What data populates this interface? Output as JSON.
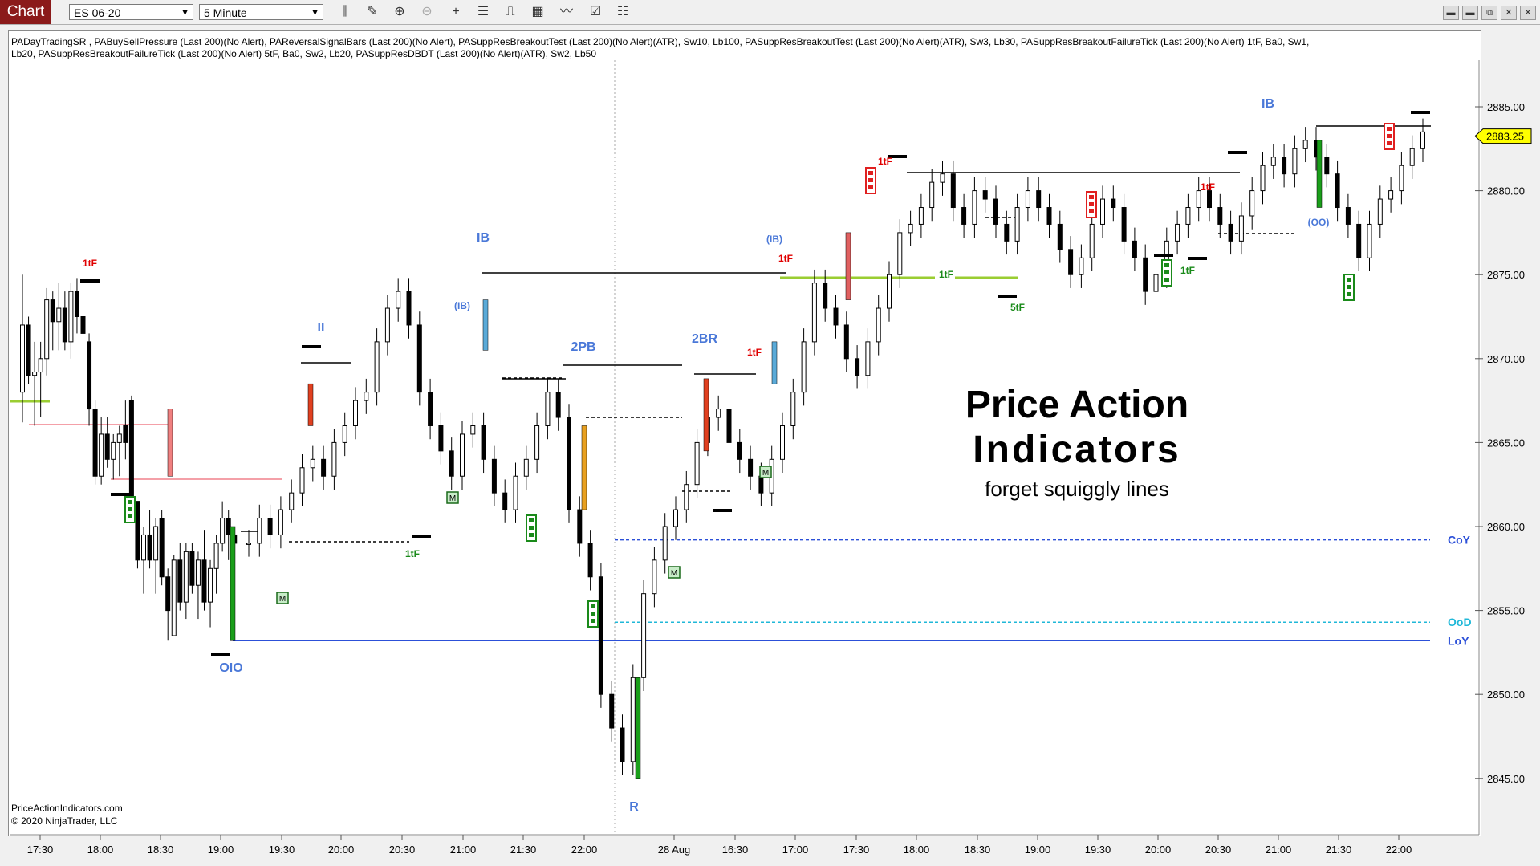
{
  "toolbar": {
    "chart_tab": "Chart",
    "instrument": "ES 06-20",
    "interval": "5 Minute",
    "tool_icons": [
      "bar-type-icon",
      "drawing-tool-icon",
      "zoom-in-icon",
      "zoom-out-icon",
      "crosshair-icon",
      "properties-icon",
      "indicators-icon",
      "strategies-icon",
      "chart-style-icon",
      "data-box-icon"
    ],
    "window_icons": [
      "minimize-icon",
      "restore-icon",
      "maximize-icon",
      "close-icon"
    ]
  },
  "indicator_line1": "PADayTradingSR , PABuySellPressure (Last 200)(No Alert), PAReversalSignalBars (Last 200)(No Alert), PASuppResBreakoutTest (Last 200)(No Alert)(ATR),  Sw10,  Lb100, PASuppResBreakoutTest (Last 200)(No Alert)(ATR),  Sw3,  Lb30, PASuppResBreakoutFailureTick (Last 200)(No Alert) 1tF,  Ba0,  Sw1,",
  "indicator_line2": "Lb20, PASuppResBreakoutFailureTick (Last 200)(No Alert) 5tF,  Ba0,  Sw2,  Lb20, PASuppResDBDT (Last 200)(No Alert)(ATR),  Sw2,  Lb50",
  "watermark": {
    "line1": "Price Action",
    "line2": "Indicators",
    "line3": "forget squiggly lines"
  },
  "footer": {
    "site": "PriceActionIndicators.com",
    "copyright": "© 2020 NinjaTrader, LLC"
  },
  "chart_data": {
    "type": "candlestick",
    "ylim": [
      2842,
      2890
    ],
    "y_ticks": [
      2845,
      2850,
      2855,
      2860,
      2865,
      2870,
      2875,
      2880,
      2885
    ],
    "y_tick_labels": [
      "2845.00",
      "2850.00",
      "2855.00",
      "2860.00",
      "2865.00",
      "2870.00",
      "2875.00",
      "2880.00",
      "2885.00"
    ],
    "x_tick_labels": [
      "17:30",
      "18:00",
      "18:30",
      "19:00",
      "19:30",
      "20:00",
      "20:30",
      "21:00",
      "21:30",
      "22:00",
      "28 Aug",
      "16:30",
      "17:00",
      "17:30",
      "18:00",
      "18:30",
      "19:00",
      "19:30",
      "20:00",
      "20:30",
      "21:00",
      "21:30",
      "22:00"
    ],
    "current_price": 2883.25,
    "current_price_label": "2883.25",
    "colors": {
      "up_candle": "#ffffff",
      "down_candle": "#000000",
      "buy_pressure": "#1a9e1a",
      "sell_pressure": "#e02020",
      "label_blue": "#4a78d8",
      "label_red": "#e00000",
      "label_green": "#1a8a1a",
      "price_marker": "#ffff00"
    },
    "level_lines": [
      {
        "label": "CoY",
        "value": 2859.2,
        "style": "dashed",
        "color": "#2c50d8"
      },
      {
        "label": "OoD",
        "value": 2854.3,
        "style": "dashed",
        "color": "#20b8d8"
      },
      {
        "label": "LoY",
        "value": 2853.2,
        "style": "solid",
        "color": "#2c50d8"
      }
    ],
    "annotations": [
      {
        "text": "1tF",
        "x_index": 6,
        "y": 2876.5,
        "color": "red"
      },
      {
        "text": "II",
        "x_index": 25,
        "y": 2871.5,
        "color": "blue"
      },
      {
        "text": "IB",
        "x_index": 39,
        "y": 2877.8,
        "color": "blue"
      },
      {
        "text": "(IB)",
        "x_index": 37,
        "y": 2872.5,
        "color": "blue"
      },
      {
        "text": "OIO",
        "x_index": 19,
        "y": 2851.5,
        "color": "blue"
      },
      {
        "text": "1tF",
        "x_index": 34,
        "y": 2858.1,
        "color": "green"
      },
      {
        "text": "2PB",
        "x_index": 49,
        "y": 2870.5,
        "color": "blue"
      },
      {
        "text": "R",
        "x_index": 52,
        "y": 2843.0,
        "color": "blue"
      },
      {
        "text": "2BR",
        "x_index": 59,
        "y": 2871.0,
        "color": "blue"
      },
      {
        "text": "1tF",
        "x_index": 62,
        "y": 2870.2,
        "color": "red"
      },
      {
        "text": "(IB)",
        "x_index": 64,
        "y": 2876.8,
        "color": "blue"
      },
      {
        "text": "1tF",
        "x_index": 65,
        "y": 2876.0,
        "color": "red"
      },
      {
        "text": "1tF",
        "x_index": 72,
        "y": 2881.4,
        "color": "red"
      },
      {
        "text": "1tF",
        "x_index": 79,
        "y": 2874.8,
        "color": "green"
      },
      {
        "text": "5tF",
        "x_index": 85,
        "y": 2873.0,
        "color": "green"
      },
      {
        "text": "1tF",
        "x_index": 100,
        "y": 2880.0,
        "color": "red"
      },
      {
        "text": "1tF",
        "x_index": 98,
        "y": 2875.0,
        "color": "green"
      },
      {
        "text": "IB",
        "x_index": 105,
        "y": 2885.0,
        "color": "blue"
      },
      {
        "text": "(OO)",
        "x_index": 110,
        "y": 2878.1,
        "color": "blue"
      }
    ],
    "candles": [
      [
        2868.0,
        2875.0,
        2866.2,
        2872.0
      ],
      [
        2872.0,
        2872.5,
        2868.5,
        2869.0
      ],
      [
        2869.0,
        2871.0,
        2866.0,
        2869.2
      ],
      [
        2869.2,
        2871.0,
        2866.5,
        2870.0
      ],
      [
        2870.0,
        2874.2,
        2869.0,
        2873.5
      ],
      [
        2873.5,
        2874.0,
        2870.5,
        2872.2
      ],
      [
        2872.2,
        2874.5,
        2870.5,
        2873.0
      ],
      [
        2873.0,
        2874.0,
        2870.5,
        2871.0
      ],
      [
        2871.0,
        2874.5,
        2870.0,
        2874.0
      ],
      [
        2874.0,
        2874.8,
        2871.5,
        2872.5
      ],
      [
        2872.5,
        2873.5,
        2871.0,
        2871.5
      ],
      [
        2871.0,
        2871.5,
        2866.0,
        2867.0
      ],
      [
        2867.0,
        2867.5,
        2862.5,
        2863.0
      ],
      [
        2863.0,
        2866.5,
        2862.5,
        2865.5
      ],
      [
        2865.5,
        2866.5,
        2863.5,
        2864.0
      ],
      [
        2864.0,
        2865.5,
        2862.8,
        2865.0
      ],
      [
        2865.0,
        2866.0,
        2863.0,
        2865.5
      ],
      [
        2866.0,
        2867.5,
        2864.0,
        2865.0
      ],
      [
        2867.5,
        2867.8,
        2860.5,
        2861.5
      ],
      [
        2861.5,
        2861.5,
        2857.5,
        2858.0
      ],
      [
        2858.0,
        2860.0,
        2856.0,
        2859.5
      ],
      [
        2859.5,
        2861.0,
        2857.5,
        2858.0
      ],
      [
        2858.0,
        2860.5,
        2856.0,
        2860.0
      ],
      [
        2860.5,
        2861.0,
        2856.5,
        2857.0
      ],
      [
        2857.0,
        2857.5,
        2853.2,
        2855.0
      ],
      [
        2853.5,
        2858.3,
        2853.5,
        2858.0
      ],
      [
        2858.0,
        2859.0,
        2855.0,
        2855.5
      ],
      [
        2855.5,
        2859.0,
        2854.5,
        2858.5
      ],
      [
        2858.5,
        2859.0,
        2856.0,
        2856.5
      ],
      [
        2856.5,
        2858.5,
        2854.5,
        2858.0
      ],
      [
        2858.0,
        2859.8,
        2855.0,
        2855.5
      ],
      [
        2855.5,
        2858.0,
        2854.0,
        2857.5
      ],
      [
        2857.5,
        2859.5,
        2856.0,
        2859.0
      ],
      [
        2859.0,
        2861.5,
        2858.5,
        2860.5
      ],
      [
        2860.5,
        2861.0,
        2858.0,
        2859.5
      ],
      [
        2859.5,
        2860.0,
        2858.5,
        2859.0
      ]
    ]
  }
}
